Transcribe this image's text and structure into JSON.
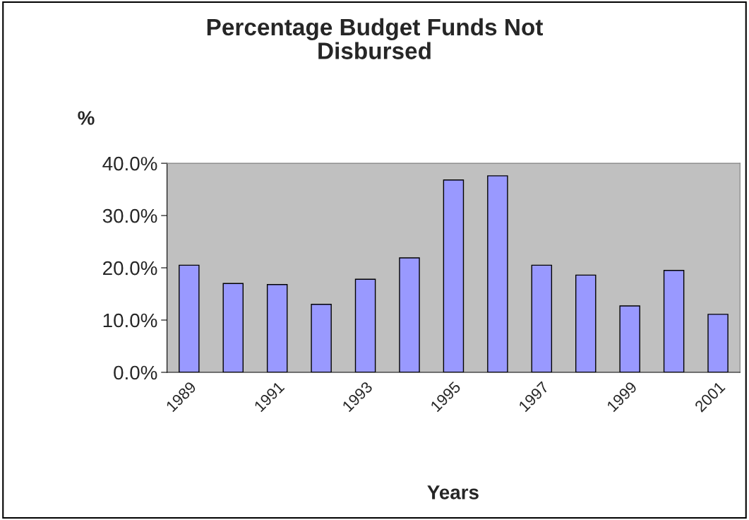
{
  "chart_data": {
    "type": "bar",
    "title": "Percentage Budget Funds Not\nDisbursed",
    "ylabel": "%",
    "xlabel": "Years",
    "categories": [
      "1989",
      null,
      "1991",
      null,
      "1993",
      null,
      "1995",
      null,
      "1997",
      null,
      "1999",
      null,
      "2001"
    ],
    "values": [
      20.5,
      17.0,
      16.8,
      13.0,
      17.8,
      21.9,
      36.8,
      37.6,
      20.5,
      18.6,
      12.7,
      19.5,
      11.1
    ],
    "color": "#9999ff",
    "ylim": [
      0,
      40
    ],
    "yticks": [
      {
        "value": 0,
        "label": "0.0%"
      },
      {
        "value": 10,
        "label": "10.0%"
      },
      {
        "value": 20,
        "label": "20.0%"
      },
      {
        "value": 30,
        "label": "30.0%"
      },
      {
        "value": 40,
        "label": "40.0%"
      }
    ],
    "grid": false,
    "legend": false
  }
}
